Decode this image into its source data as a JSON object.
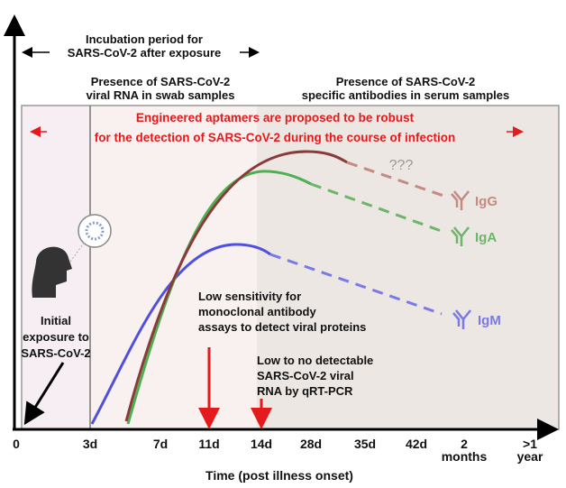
{
  "incubation": [
    "Incubation period for",
    "SARS-CoV-2 after exposure"
  ],
  "viral_rna": [
    "Presence of SARS-CoV-2",
    "viral RNA in swab samples"
  ],
  "antibodies": [
    "Presence of SARS-CoV-2",
    "specific antibodies in serum samples"
  ],
  "aptamers": [
    "Engineered aptamers are proposed to be robust",
    "for the detection of SARS-CoV-2 during the course of infection"
  ],
  "unknown": "???",
  "curves": [
    "IgG",
    "IgA",
    "IgM"
  ],
  "low_sensitivity": [
    "Low sensitivity for",
    "monoclonal antibody",
    "assays to detect viral proteins"
  ],
  "low_rna": [
    "Low to no detectable",
    "SARS-CoV-2 viral",
    "RNA by qRT-PCR"
  ],
  "initial": [
    "Initial",
    "exposure to",
    "SARS-CoV-2"
  ],
  "x_ticks": [
    "0",
    "3d",
    "7d",
    "11d",
    "14d",
    "28d",
    "35d",
    "42d",
    "2",
    "months",
    ">1",
    "year"
  ],
  "x_axis_title": "Time (post illness onset)"
}
